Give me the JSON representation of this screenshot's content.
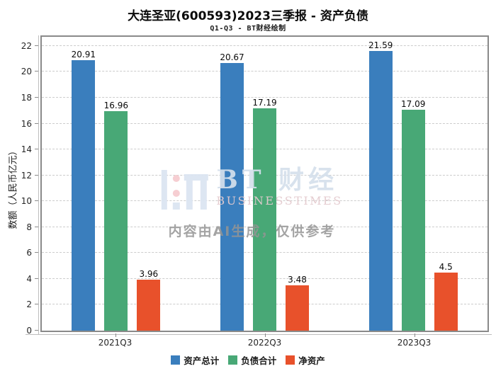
{
  "title": "大连圣亚(600593)2023三季报 - 资产负债",
  "subtitle": "Q1-Q3 - BT财经绘制",
  "watermark": {
    "brand_cn": "BT 财经",
    "brand_en": "BUSINESSTIMES",
    "ai_note": "内容由AI生成，仅供参考"
  },
  "chart_data": {
    "type": "bar",
    "title": "大连圣亚(600593)2023三季报 - 资产负债",
    "subtitle": "Q1-Q3 - BT财经绘制",
    "xlabel": "",
    "ylabel": "数额（人民币亿元）",
    "categories": [
      "2021Q3",
      "2022Q3",
      "2023Q3"
    ],
    "series": [
      {
        "name": "资产总计",
        "color": "#3a7ebd",
        "values": [
          20.91,
          20.67,
          21.59
        ]
      },
      {
        "name": "负债合计",
        "color": "#48a876",
        "values": [
          16.96,
          17.19,
          17.09
        ]
      },
      {
        "name": "净资产",
        "color": "#e8512b",
        "values": [
          3.96,
          3.48,
          4.5
        ]
      }
    ],
    "ylim": [
      0,
      22.7
    ],
    "yticks": [
      0,
      2,
      4,
      6,
      8,
      10,
      12,
      14,
      16,
      18,
      20,
      22
    ],
    "grid": true,
    "gridline_style": "dashed",
    "legend_position": "bottom"
  }
}
